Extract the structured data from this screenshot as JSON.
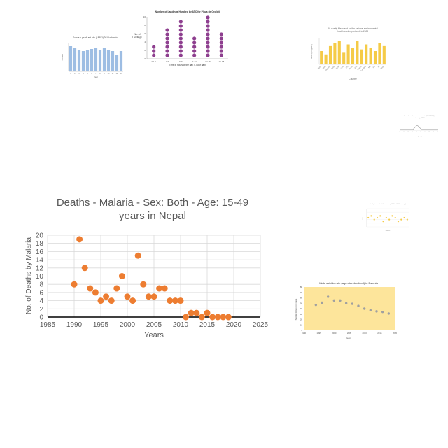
{
  "chart_data": [
    {
      "type": "bar",
      "title": "So rua o ga hfl ant lolo (1880?) 2013 whimsic",
      "xlabel": "Year",
      "ylabel": "Tannes",
      "categories": [
        "1",
        "2",
        "3",
        "4",
        "5",
        "6",
        "7",
        "8",
        "9",
        "10",
        "11",
        "12",
        "13"
      ],
      "values": [
        3.6,
        3.4,
        3.0,
        2.9,
        3.1,
        3.2,
        3.3,
        3.1,
        3.4,
        3.0,
        2.9,
        2.4,
        2.9
      ],
      "ylim": [
        0,
        4
      ],
      "color": "#9dbde3"
    },
    {
      "type": "scatter",
      "title": "Number of Landings Handled by ATC for Playa de Oro Intl",
      "xlabel": "Time in hours of the day (1 hour gap)",
      "ylabel": "No. of Landings",
      "categories": [
        "00-3",
        "3-6",
        "6-9",
        "9-12",
        "12-15",
        "15-18"
      ],
      "values": [
        3,
        7,
        9,
        5,
        10,
        6
      ],
      "ylim": [
        0,
        10
      ],
      "color": "#8e3f8f"
    },
    {
      "type": "bar",
      "title": "Air quality Measured on the national environmental health tracking network in 2008",
      "xlabel": "Country",
      "ylabel": "Value (in ug/m3)",
      "categories": [
        "Alpha",
        "Beta",
        "Gamma",
        "Delta",
        "Epsil",
        "Zeta",
        "Eta",
        "Theta",
        "Iota",
        "Kappa",
        "Lambda",
        "Mu",
        "Nu",
        "Xi",
        "Omic"
      ],
      "values": [
        8,
        6,
        11,
        13,
        14,
        7,
        12,
        10,
        14,
        9,
        12,
        10,
        8,
        13,
        11
      ],
      "ylim": [
        0,
        16
      ],
      "color": "#f5cb47"
    },
    {
      "type": "line",
      "title": "Annual ten-day-ahead rain data (2000-2018) in the city, 1908",
      "xlabel": "Period",
      "ylabel": "",
      "x": [
        "1",
        "2",
        "3",
        "4",
        "5",
        "6",
        "7",
        "8",
        "9",
        "10"
      ],
      "values": [
        1,
        1,
        1,
        1,
        6,
        1,
        1,
        1,
        1,
        1
      ],
      "ylim": [
        0,
        10
      ],
      "color": "#999999"
    },
    {
      "type": "scatter",
      "title": "Deaths - Malaria - Sex: Both - Age: 15-49 years in Nepal",
      "xlabel": "Years",
      "ylabel": "No. of Deaths by Malaria",
      "x": [
        1990,
        1991,
        1992,
        1993,
        1994,
        1995,
        1996,
        1997,
        1998,
        1999,
        2000,
        2001,
        2002,
        2003,
        2004,
        2005,
        2006,
        2007,
        2008,
        2009,
        2010,
        2011,
        2012,
        2013,
        2014,
        2015,
        2016,
        2017,
        2018,
        2019
      ],
      "values": [
        8,
        19,
        12,
        7,
        6,
        4,
        5,
        4,
        7,
        10,
        5,
        4,
        15,
        8,
        5,
        5,
        7,
        7,
        4,
        4,
        4,
        0,
        1,
        1,
        0,
        1,
        0,
        0,
        0,
        0
      ],
      "xlim": [
        1985,
        2025
      ],
      "ylim": [
        0,
        20
      ],
      "xticks": [
        1985,
        1990,
        1995,
        2000,
        2005,
        2010,
        2015,
        2020,
        2025
      ],
      "yticks": [
        0,
        2,
        4,
        6,
        8,
        10,
        12,
        14,
        16,
        18,
        20
      ],
      "grid": true,
      "color": "#ed7d31"
    },
    {
      "type": "scatter",
      "title": "Stock price trends of the company, 2020 to 2024 (average)",
      "xlabel": "Months",
      "ylabel": "Value",
      "x": [
        1,
        2,
        3,
        4,
        5,
        6,
        7,
        8,
        9,
        10,
        11,
        12,
        13,
        14
      ],
      "values": [
        5,
        6,
        4,
        5,
        6,
        3,
        5,
        4,
        6,
        5,
        3,
        4,
        5,
        4
      ],
      "ylim": [
        0,
        10
      ],
      "color": "#f5cb47"
    },
    {
      "type": "scatter",
      "title": "Male suicide rate (age-standardized) in Estonia",
      "xlabel": "Years",
      "ylabel": "Suicide Rate percentage",
      "x": [
        1994,
        1996,
        1998,
        2000,
        2002,
        2004,
        2006,
        2008,
        2010,
        2012,
        2014,
        2016,
        2018
      ],
      "values": [
        47,
        51,
        62,
        55,
        55,
        50,
        49,
        45,
        40,
        37,
        35,
        34,
        31
      ],
      "xlim": [
        1990,
        2020
      ],
      "ylim": [
        0,
        80
      ],
      "xticks": [
        1990,
        1995,
        2000,
        2005,
        2010,
        2015,
        2020
      ],
      "yticks": [
        0,
        10,
        20,
        30,
        40,
        50,
        60,
        70,
        80
      ],
      "color": "#a0a0a0",
      "background": "#fde59b"
    }
  ]
}
